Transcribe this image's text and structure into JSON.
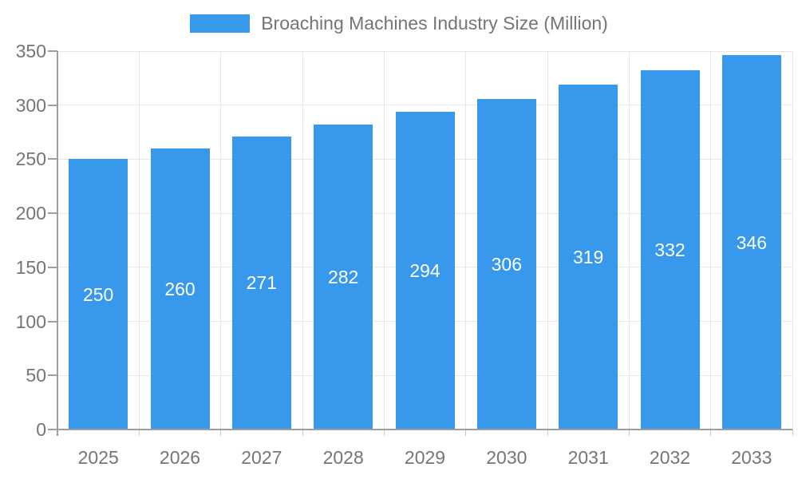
{
  "legend": {
    "label": "Broaching Machines Industry Size (Million)"
  },
  "chart_data": {
    "type": "bar",
    "title": "Broaching Machines Industry Size (Million)",
    "categories": [
      "2025",
      "2026",
      "2027",
      "2028",
      "2029",
      "2030",
      "2031",
      "2032",
      "2033"
    ],
    "values": [
      250,
      260,
      271,
      282,
      294,
      306,
      319,
      332,
      346
    ],
    "xlabel": "",
    "ylabel": "",
    "ylim": [
      0,
      350
    ],
    "yticks": [
      0,
      50,
      100,
      150,
      200,
      250,
      300,
      350
    ],
    "grid": true,
    "legend_position": "top-center",
    "value_labels": "inside-center",
    "colors": {
      "bar": "#3899EC",
      "value_label": "#FFFFFF",
      "axis_text": "#757575",
      "grid_line": "#E6E6E6",
      "axis_line": "#9E9E9E",
      "background": "#FFFFFF"
    }
  }
}
